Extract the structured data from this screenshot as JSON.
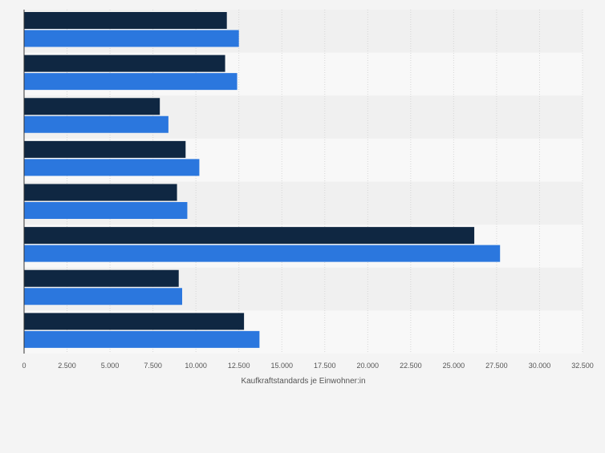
{
  "chart_data": {
    "type": "bar",
    "orientation": "horizontal",
    "categories": [
      "",
      "",
      "",
      "",
      "",
      "",
      "",
      ""
    ],
    "series": [
      {
        "color": "#0f2742",
        "values": [
          11800,
          11700,
          7900,
          9400,
          8900,
          26200,
          9000,
          12800
        ]
      },
      {
        "color": "#2b77de",
        "values": [
          12500,
          12400,
          8400,
          10200,
          9500,
          27700,
          9200,
          13700
        ]
      }
    ],
    "xlabel": "Kaufkraftstandards je Einwohner:in",
    "ylabel": "",
    "xlim": [
      0,
      32500
    ],
    "x_ticks": [
      0,
      2500,
      5000,
      7500,
      10000,
      12500,
      15000,
      17500,
      20000,
      22500,
      25000,
      27500,
      30000,
      32500
    ],
    "x_tick_labels": [
      "0",
      "2.500",
      "5.000",
      "7.500",
      "10.000",
      "12.500",
      "15.000",
      "17.500",
      "20.000",
      "22.500",
      "25.000",
      "27.500",
      "30.000",
      "32.500"
    ],
    "grid": true,
    "legend": "none"
  }
}
